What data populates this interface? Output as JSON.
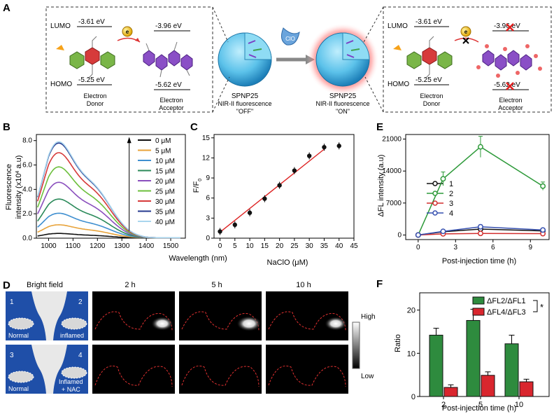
{
  "panelA": {
    "letter": "A",
    "left": {
      "lumo_label": "LUMO",
      "lumo_donor": "-3.61 eV",
      "lumo_acceptor": "-3.96 eV",
      "homo_label": "HOMO",
      "homo_donor": "-5.25 eV",
      "homo_acceptor": "-5.62 eV",
      "donor_label1": "Electron",
      "donor_label2": "Donor",
      "acceptor_label1": "Electron",
      "acceptor_label2": "Acceptor",
      "electron": "e"
    },
    "right": {
      "lumo_label": "LUMO",
      "lumo_donor": "-3.61 eV",
      "lumo_acceptor": "-3.96 eV",
      "homo_label": "HOMO",
      "homo_donor": "-5.25 eV",
      "homo_acceptor": "-5.62 eV",
      "donor_label1": "Electron",
      "donor_label2": "Donor",
      "acceptor_label1": "Electron",
      "acceptor_label2": "Acceptor",
      "electron": "e"
    },
    "np_off": {
      "name": "SPNP25",
      "line1": "NIR-II fluorescence",
      "line2": "\"OFF\""
    },
    "np_on": {
      "name": "SPNP25",
      "line1": "NIR-II fluorescence",
      "line2": "\"ON\""
    },
    "reagent": "ClO"
  },
  "panelB": {
    "letter": "B",
    "chart_data": {
      "type": "line",
      "xlabel": "Wavelength (nm)",
      "ylabel_line1": "Fluorescence",
      "ylabel_line2": "intensity (x10",
      "ylabel_exp": "4",
      "ylabel_unit": " a.u)",
      "xlim": [
        950,
        1560
      ],
      "ylim": [
        0,
        8.5
      ],
      "xticks": [
        1000,
        1100,
        1200,
        1300,
        1400,
        1500
      ],
      "yticks": [
        "0.0",
        "2.0",
        "4.0",
        "6.0",
        "8.0"
      ],
      "ytick_values": [
        0,
        2,
        4,
        6,
        8
      ],
      "series": [
        {
          "name": "0 μM",
          "color": "#111111",
          "peak": 0.35
        },
        {
          "name": "5 μM",
          "color": "#e8a33a",
          "peak": 1.0
        },
        {
          "name": "10 μM",
          "color": "#3f8fd0",
          "peak": 1.9
        },
        {
          "name": "15 μM",
          "color": "#2b8a5a",
          "peak": 3.0
        },
        {
          "name": "20 μM",
          "color": "#8a4fbd",
          "peak": 4.3
        },
        {
          "name": "25 μM",
          "color": "#6cbf3c",
          "peak": 5.5
        },
        {
          "name": "30 μM",
          "color": "#d63a3a",
          "peak": 6.6
        },
        {
          "name": "35 μM",
          "color": "#243a8f",
          "peak": 7.35
        },
        {
          "name": "40 μM",
          "color": "#a9d6ee",
          "peak": 7.45
        }
      ]
    }
  },
  "panelC": {
    "letter": "C",
    "chart_data": {
      "type": "scatter",
      "xlabel": "NaClO (μM)",
      "ylabel": "F/F",
      "ylabel_sub": "0",
      "xlim": [
        -2,
        45
      ],
      "ylim": [
        0,
        15.5
      ],
      "xticks": [
        0,
        5,
        10,
        15,
        20,
        25,
        30,
        35,
        40,
        45
      ],
      "yticks": [
        0,
        3,
        6,
        9,
        12,
        15
      ],
      "x": [
        0,
        5,
        10,
        15,
        20,
        25,
        30,
        35,
        40
      ],
      "y": [
        1.0,
        2.0,
        3.8,
        5.9,
        7.9,
        10.1,
        12.3,
        13.6,
        13.8
      ],
      "fit": {
        "x": [
          0,
          35
        ],
        "y": [
          0.9,
          13.3
        ]
      }
    }
  },
  "panelD": {
    "letter": "D",
    "bright_field": "Bright  field",
    "times": [
      "2 h",
      "5 h",
      "10 h"
    ],
    "top_labels": {
      "n1": "1",
      "n2": "2",
      "left": "Normal",
      "right": "inflamed"
    },
    "bottom_labels": {
      "n3": "3",
      "n4": "4",
      "left": "Normal",
      "right1": "Inflamed",
      "right2": "+ NAC"
    },
    "scale_high": "High",
    "scale_low": "Low"
  },
  "panelE": {
    "letter": "E",
    "chart_data": {
      "type": "line",
      "xlabel": "Post-injection time (h)",
      "ylabel": "ΔFL intensity (a.u)",
      "xlim": [
        -1,
        10.5
      ],
      "ylim": [
        -1000,
        22000
      ],
      "xticks": [
        0,
        3,
        6,
        9
      ],
      "yticks": [
        0,
        7000,
        14000,
        21000
      ],
      "x": [
        0,
        2,
        5,
        10
      ],
      "series": [
        {
          "name": "1",
          "color": "#111111",
          "values": [
            0,
            700,
            1300,
            900
          ]
        },
        {
          "name": "2",
          "color": "#2e9a3a",
          "values": [
            0,
            12300,
            19300,
            10700
          ]
        },
        {
          "name": "3",
          "color": "#d22f2f",
          "values": [
            0,
            250,
            350,
            300
          ]
        },
        {
          "name": "4",
          "color": "#3650b0",
          "values": [
            0,
            800,
            1800,
            1100
          ]
        }
      ]
    }
  },
  "panelF": {
    "letter": "F",
    "chart_data": {
      "type": "bar",
      "xlabel": "Post-injection time (h)",
      "ylabel": "Ratio",
      "categories": [
        "2",
        "5",
        "10"
      ],
      "ylim": [
        0,
        24
      ],
      "yticks": [
        0,
        10,
        20
      ],
      "series": [
        {
          "name": "ΔFL2/ΔFL1",
          "color": "#2e8b3e",
          "values": [
            14.2,
            17.6,
            12.2
          ],
          "err": [
            1.6,
            2.6,
            2.0
          ]
        },
        {
          "name": "ΔFL4/ΔFL3",
          "color": "#d9262e",
          "values": [
            2.1,
            4.9,
            3.4
          ],
          "err": [
            0.6,
            0.8,
            0.6
          ]
        }
      ],
      "significance": "*"
    }
  }
}
